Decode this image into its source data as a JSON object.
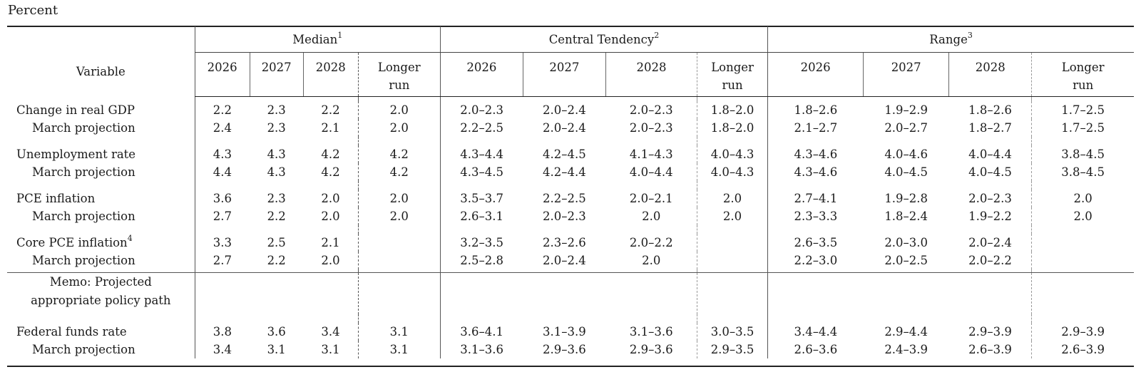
{
  "unit_label": "Percent",
  "header": {
    "variable": "Variable",
    "groups": [
      {
        "label": "Median",
        "note": "1"
      },
      {
        "label": "Central Tendency",
        "note": "2"
      },
      {
        "label": "Range",
        "note": "3"
      }
    ],
    "years": [
      "2026",
      "2027",
      "2028"
    ],
    "longer_run_line1": "Longer",
    "longer_run_line2": "run"
  },
  "rows": {
    "gdp": {
      "label": "Change in real GDP",
      "note": "",
      "values": [
        "2.2",
        "2.3",
        "2.2",
        "2.0",
        "2.0–2.3",
        "2.0–2.4",
        "2.0–2.3",
        "1.8–2.0",
        "1.8–2.6",
        "1.9–2.9",
        "1.8–2.6",
        "1.7–2.5"
      ]
    },
    "gdp_march": {
      "label": "March projection",
      "values": [
        "2.4",
        "2.3",
        "2.1",
        "2.0",
        "2.2–2.5",
        "2.0–2.4",
        "2.0–2.3",
        "1.8–2.0",
        "2.1–2.7",
        "2.0–2.7",
        "1.8–2.7",
        "1.7–2.5"
      ]
    },
    "unemp": {
      "label": "Unemployment rate",
      "values": [
        "4.3",
        "4.3",
        "4.2",
        "4.2",
        "4.3–4.4",
        "4.2–4.5",
        "4.1–4.3",
        "4.0–4.3",
        "4.3–4.6",
        "4.0–4.6",
        "4.0–4.4",
        "3.8–4.5"
      ]
    },
    "unemp_march": {
      "label": "March projection",
      "values": [
        "4.4",
        "4.3",
        "4.2",
        "4.2",
        "4.3–4.5",
        "4.2–4.4",
        "4.0–4.4",
        "4.0–4.3",
        "4.3–4.6",
        "4.0–4.5",
        "4.0–4.5",
        "3.8–4.5"
      ]
    },
    "pce": {
      "label": "PCE inflation",
      "values": [
        "3.6",
        "2.3",
        "2.0",
        "2.0",
        "3.5–3.7",
        "2.2–2.5",
        "2.0–2.1",
        "2.0",
        "2.7–4.1",
        "1.9–2.8",
        "2.0–2.3",
        "2.0"
      ]
    },
    "pce_march": {
      "label": "March projection",
      "values": [
        "2.7",
        "2.2",
        "2.0",
        "2.0",
        "2.6–3.1",
        "2.0–2.3",
        "2.0",
        "2.0",
        "2.3–3.3",
        "1.8–2.4",
        "1.9–2.2",
        "2.0"
      ]
    },
    "core": {
      "label": "Core PCE inflation",
      "note": "4",
      "values": [
        "3.3",
        "2.5",
        "2.1",
        "",
        "3.2–3.5",
        "2.3–2.6",
        "2.0–2.2",
        "",
        "2.6–3.5",
        "2.0–3.0",
        "2.0–2.4",
        ""
      ]
    },
    "core_march": {
      "label": "March projection",
      "values": [
        "2.7",
        "2.2",
        "2.0",
        "",
        "2.5–2.8",
        "2.0–2.4",
        "2.0",
        "",
        "2.2–3.0",
        "2.0–2.5",
        "2.0–2.2",
        ""
      ]
    },
    "memo_line1": "Memo: Projected",
    "memo_line2": "appropriate policy path",
    "ffr": {
      "label": "Federal funds rate",
      "values": [
        "3.8",
        "3.6",
        "3.4",
        "3.1",
        "3.6–4.1",
        "3.1–3.9",
        "3.1–3.6",
        "3.0–3.5",
        "3.4–4.4",
        "2.9–4.4",
        "2.9–3.9",
        "2.9–3.9"
      ]
    },
    "ffr_march": {
      "label": "March projection",
      "values": [
        "3.4",
        "3.1",
        "3.1",
        "3.1",
        "3.1–3.6",
        "2.9–3.6",
        "2.9–3.6",
        "2.9–3.5",
        "2.6–3.6",
        "2.4–3.9",
        "2.6–3.9",
        "2.6–3.9"
      ]
    }
  }
}
